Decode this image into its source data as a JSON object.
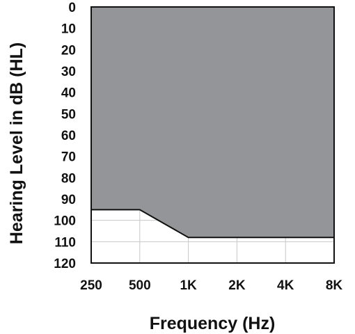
{
  "chart_data": {
    "type": "area",
    "title": "",
    "xlabel": "Frequency (Hz)",
    "ylabel": "Hearing Level in dB (HL)",
    "x_categories": [
      "250",
      "500",
      "1K",
      "2K",
      "4K",
      "8K"
    ],
    "y_ticks": [
      "0",
      "10",
      "20",
      "30",
      "40",
      "50",
      "60",
      "70",
      "80",
      "90",
      "100",
      "110",
      "120"
    ],
    "ylim": [
      0,
      120
    ],
    "y_inverted": true,
    "grid": true,
    "fill_color": "#939598",
    "outline_color": "#111111",
    "series": [
      {
        "points": [
          {
            "x": "250",
            "y": 95
          },
          {
            "x": "500",
            "y": 95
          },
          {
            "x": "1K",
            "y": 108
          },
          {
            "x": "2K",
            "y": 108
          },
          {
            "x": "4K",
            "y": 108
          },
          {
            "x": "8K",
            "y": 108
          }
        ]
      }
    ]
  }
}
